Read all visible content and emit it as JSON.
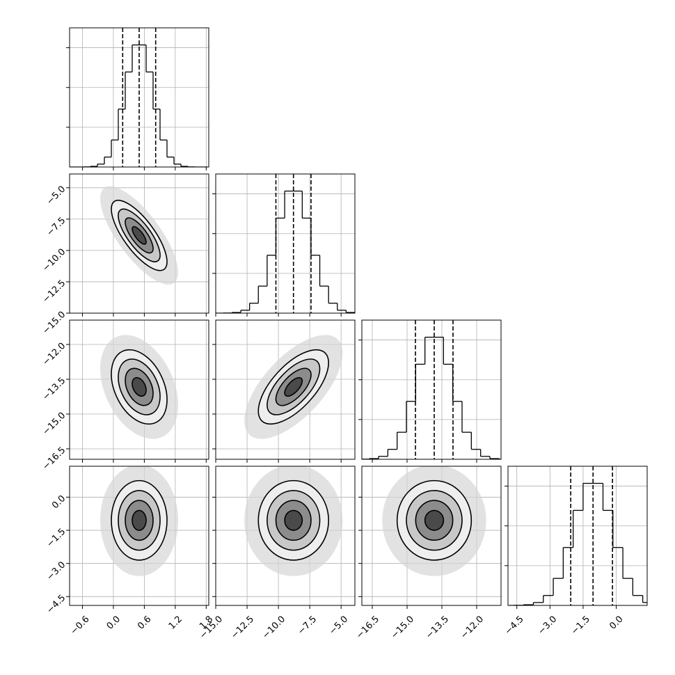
{
  "chart_data": {
    "type": "corner",
    "grid": true,
    "color": "#000000",
    "params": [
      {
        "lim": [
          -0.85,
          1.85
        ],
        "mean": 0.5,
        "sd": 0.27,
        "ticks": [
          {
            "value": -0.6,
            "label": "−0.6"
          },
          {
            "value": 0,
            "label": "0.0"
          },
          {
            "value": 0.6,
            "label": "0.6"
          },
          {
            "value": 1.2,
            "label": "1.2"
          },
          {
            "value": 1.8,
            "label": "1.8"
          }
        ]
      },
      {
        "lim": [
          -15,
          -3.9
        ],
        "mean": -8.8,
        "sd": 1.4,
        "ticks": [
          {
            "value": -15,
            "label": "−15.0"
          },
          {
            "value": -12.5,
            "label": "−12.5"
          },
          {
            "value": -10,
            "label": "−10.0"
          },
          {
            "value": -7.5,
            "label": "−7.5"
          },
          {
            "value": -5,
            "label": "−5.0"
          }
        ]
      },
      {
        "lim": [
          -16.95,
          -10.95
        ],
        "mean": -13.83,
        "sd": 0.8,
        "ticks": [
          {
            "value": -16.5,
            "label": "−16.5"
          },
          {
            "value": -15,
            "label": "−15.0"
          },
          {
            "value": -13.5,
            "label": "−13.5"
          },
          {
            "value": -12,
            "label": "−12.0"
          }
        ]
      },
      {
        "lim": [
          -4.9,
          1.4
        ],
        "mean": -1.05,
        "sd": 0.9,
        "ticks": [
          {
            "value": -4.5,
            "label": "−4.5"
          },
          {
            "value": -3,
            "label": "−3.0"
          },
          {
            "value": -1.5,
            "label": "−1.5"
          },
          {
            "value": 0,
            "label": "0.0"
          }
        ]
      }
    ],
    "hist_ylim": [
      0,
      1050
    ],
    "hist_yticks": [
      300,
      600,
      900
    ],
    "histograms": [
      {
        "bins": [
          -0.85,
          -0.715,
          -0.58,
          -0.445,
          -0.31,
          -0.175,
          -0.04,
          0.095,
          0.23,
          0.365,
          0.5,
          0.635,
          0.77,
          0.905,
          1.04,
          1.175,
          1.31,
          1.445,
          1.58,
          1.715,
          1.85
        ],
        "counts": [
          0,
          0,
          1,
          5,
          22,
          75,
          204,
          437,
          717,
          921,
          921,
          717,
          437,
          204,
          75,
          22,
          5,
          1,
          0,
          0
        ],
        "quantiles": [
          0.18,
          0.5,
          0.82
        ]
      },
      {
        "bins": [
          -15.8,
          -15.1,
          -14.4,
          -13.7,
          -13.0,
          -12.3,
          -11.6,
          -10.9,
          -10.2,
          -9.5,
          -8.8,
          -8.1,
          -7.4,
          -6.7,
          -6.0,
          -5.3,
          -4.6,
          -3.9,
          -3.2,
          -2.5,
          -1.8
        ],
        "counts": [
          0,
          0,
          1,
          5,
          22,
          75,
          204,
          437,
          717,
          921,
          921,
          717,
          437,
          204,
          75,
          22,
          5,
          1,
          0,
          0
        ],
        "quantiles": [
          -10.2,
          -8.8,
          -7.4
        ]
      },
      {
        "bins": [
          -17.83,
          -17.43,
          -17.03,
          -16.63,
          -16.23,
          -15.83,
          -15.43,
          -15.03,
          -14.63,
          -14.23,
          -13.83,
          -13.43,
          -13.03,
          -12.63,
          -12.23,
          -11.83,
          -11.43,
          -11.03,
          -10.63,
          -10.23,
          -9.83
        ],
        "counts": [
          0,
          0,
          1,
          5,
          22,
          75,
          204,
          437,
          717,
          921,
          921,
          717,
          437,
          204,
          75,
          22,
          5,
          1,
          0,
          0
        ],
        "quantiles": [
          -14.64,
          -13.83,
          -13.02
        ]
      },
      {
        "bins": [
          -5.55,
          -5.1,
          -4.65,
          -4.2,
          -3.75,
          -3.3,
          -2.85,
          -2.4,
          -1.95,
          -1.5,
          -1.05,
          -0.6,
          -0.15,
          0.3,
          0.75,
          1.2,
          1.65,
          2.1,
          2.55,
          3.0,
          3.45
        ],
        "counts": [
          0,
          0,
          1,
          5,
          22,
          75,
          204,
          437,
          717,
          921,
          921,
          717,
          437,
          204,
          75,
          22,
          5,
          1,
          0,
          0
        ],
        "quantiles": [
          -2.06,
          -1.05,
          -0.17
        ]
      }
    ],
    "rho": [
      [],
      [
        -0.75
      ],
      [
        -0.35,
        0.65
      ],
      [
        0,
        0,
        0
      ]
    ],
    "levels": [
      0.5,
      1,
      1.5,
      2
    ]
  }
}
